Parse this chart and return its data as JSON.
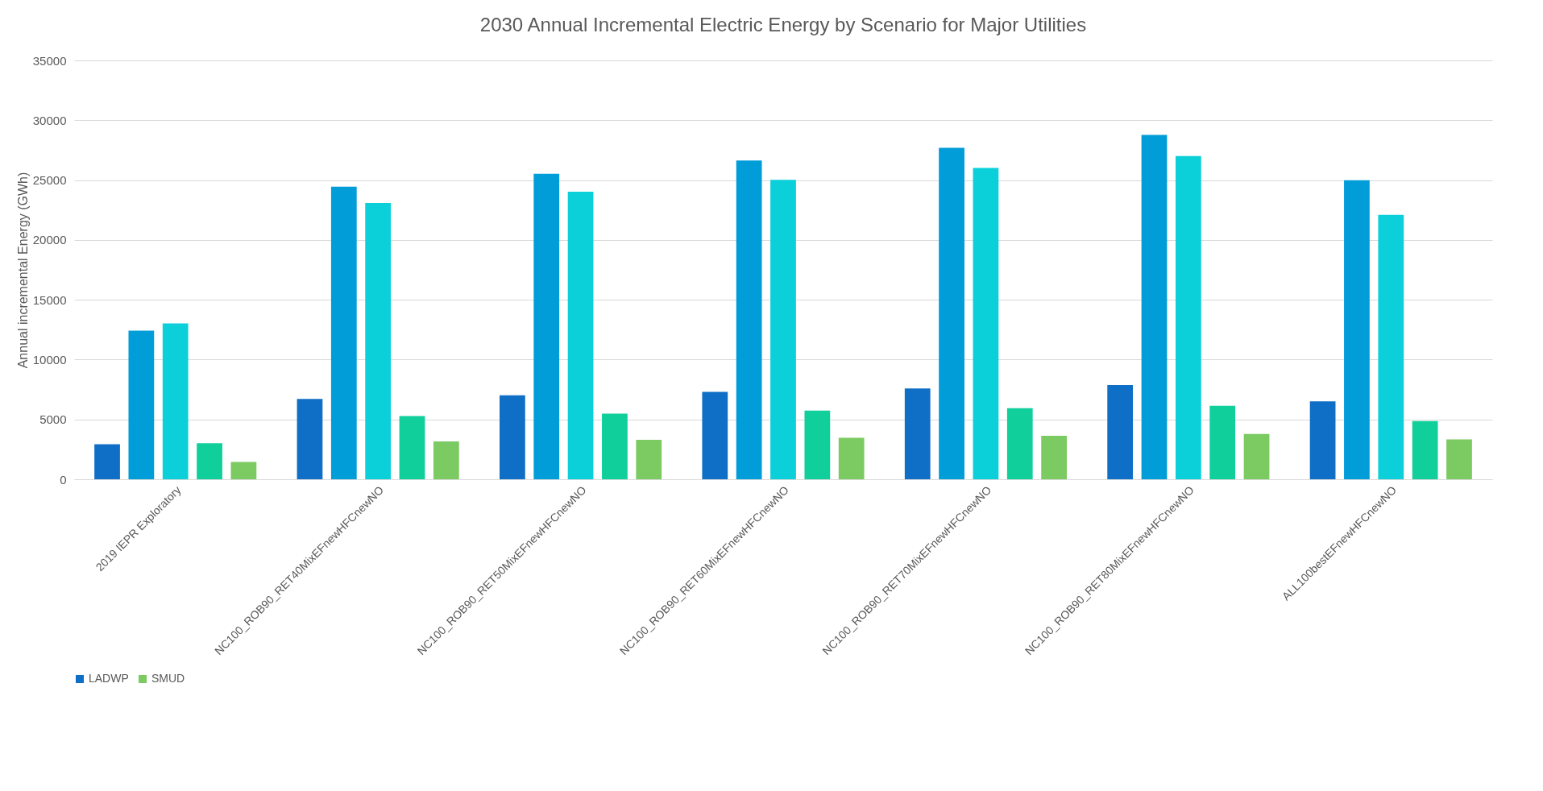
{
  "chart_data": {
    "type": "bar",
    "title": "2030 Annual Incremental Electric Energy by Scenario for Major Utilities",
    "ylabel": "Annual incremental Energy (GWh)",
    "categories": [
      "2019 IEPR Exploratory",
      "NC100_ROB90_RET40MixEFnewHFCnewNO",
      "NC100_ROB90_RET50MixEFnewHFCnewNO",
      "NC100_ROB90_RET60MixEFnewHFCnewNO",
      "NC100_ROB90_RET70MixEFnewHFCnewNO",
      "NC100_ROB90_RET80MixEFnewHFCnewNO",
      "ALL100bestEFnewHFCnewNO"
    ],
    "series": [
      {
        "name": "LADWP",
        "color": "#0f6fc6",
        "values": [
          2930,
          6720,
          7010,
          7300,
          7590,
          7870,
          6510
        ]
      },
      {
        "color": "#009dd9",
        "values": [
          12410,
          24450,
          25520,
          26630,
          27700,
          28770,
          24980
        ]
      },
      {
        "color": "#0bd0d9",
        "values": [
          13030,
          23090,
          24030,
          25020,
          26010,
          27000,
          22090
        ]
      },
      {
        "color": "#10cf9b",
        "values": [
          3010,
          5280,
          5480,
          5730,
          5940,
          6140,
          4860
        ]
      },
      {
        "name": "SMUD",
        "color": "#7cca62",
        "values": [
          1440,
          3170,
          3300,
          3460,
          3630,
          3790,
          3340
        ]
      }
    ],
    "ylim": [
      0,
      35000
    ],
    "yticks": [
      0,
      5000,
      10000,
      15000,
      20000,
      25000,
      30000,
      35000
    ],
    "grid": "y",
    "legend": "bottom"
  }
}
